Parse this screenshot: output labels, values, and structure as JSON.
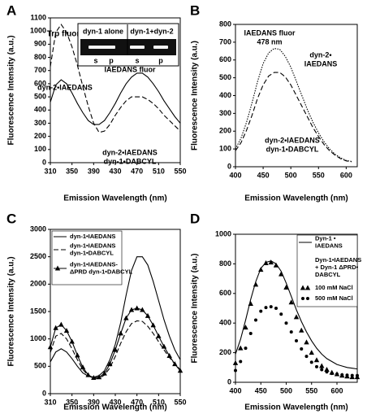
{
  "chart_data": [
    {
      "type": "line",
      "panel": "A",
      "xlabel": "Emission Wavelength (nm)",
      "ylabel": "Fluorescence Intensity (a.u.)",
      "xlim": [
        310,
        550
      ],
      "xticks": [
        310,
        350,
        390,
        430,
        470,
        510,
        550
      ],
      "ylim": [
        0,
        1100
      ],
      "yticks": [
        0,
        100,
        200,
        300,
        400,
        500,
        600,
        700,
        800,
        900,
        1000,
        1100
      ],
      "x": [
        310,
        320,
        330,
        340,
        350,
        360,
        370,
        380,
        390,
        400,
        410,
        420,
        430,
        440,
        450,
        460,
        470,
        480,
        490,
        500,
        510,
        520,
        530,
        540,
        550
      ],
      "series": [
        {
          "name": [
            "dyn-2•IAEDANS"
          ],
          "color": "#000000",
          "style": "solid",
          "values": [
            460,
            590,
            630,
            600,
            530,
            450,
            380,
            320,
            290,
            290,
            320,
            380,
            450,
            530,
            600,
            650,
            680,
            680,
            650,
            600,
            540,
            470,
            410,
            350,
            300
          ]
        },
        {
          "name": [
            "dyn-2•IAEDANS",
            "dyn-1•DABCYL"
          ],
          "color": "#000000",
          "style": "dashed",
          "values": [
            730,
            990,
            1050,
            990,
            880,
            740,
            580,
            430,
            300,
            230,
            240,
            290,
            360,
            420,
            470,
            500,
            500,
            500,
            480,
            450,
            410,
            360,
            320,
            280,
            240
          ]
        }
      ],
      "annotations": [
        "Trp fluor",
        "IAEDANS fluor"
      ],
      "inset": {
        "groups": [
          "dyn-1 alone",
          "dyn-1+dyn-2"
        ],
        "lanes": [
          "s",
          "p",
          "s",
          "p"
        ]
      }
    },
    {
      "type": "line",
      "panel": "B",
      "xlabel": "Emission Wavelength (nm)",
      "ylabel": "Fluorescence Intensity (a.u.)",
      "xlim": [
        400,
        620
      ],
      "xticks": [
        400,
        450,
        500,
        550,
        600
      ],
      "ylim": [
        0,
        800
      ],
      "yticks": [
        0,
        100,
        200,
        300,
        400,
        500,
        600,
        700,
        800
      ],
      "x": [
        400,
        410,
        420,
        430,
        440,
        450,
        460,
        470,
        480,
        490,
        500,
        510,
        520,
        530,
        540,
        550,
        560,
        570,
        580,
        590,
        600,
        610
      ],
      "series": [
        {
          "name": [
            "dyn-2•",
            "IAEDANS"
          ],
          "color": "#000000",
          "style": "dotted",
          "values": [
            100,
            160,
            250,
            360,
            480,
            580,
            640,
            665,
            660,
            620,
            560,
            480,
            400,
            320,
            250,
            190,
            140,
            100,
            70,
            50,
            35,
            30
          ]
        },
        {
          "name": [
            "dyn-2•IAEDANS",
            "dyn-1•DABCYL"
          ],
          "color": "#000000",
          "style": "dashed",
          "values": [
            90,
            135,
            205,
            290,
            385,
            460,
            510,
            530,
            530,
            505,
            460,
            400,
            340,
            280,
            220,
            170,
            125,
            90,
            65,
            45,
            33,
            28
          ]
        }
      ],
      "annotations": [
        "IAEDANS fluor",
        "478 nm"
      ]
    },
    {
      "type": "line",
      "panel": "C",
      "xlabel": "Emission Wavelength (nm)",
      "ylabel": "Fluorescence Intensity (a.u.)",
      "xlim": [
        310,
        550
      ],
      "xticks": [
        310,
        350,
        390,
        430,
        470,
        510,
        550
      ],
      "ylim": [
        0,
        3000
      ],
      "yticks": [
        0,
        500,
        1000,
        1500,
        2000,
        2500,
        3000
      ],
      "x": [
        310,
        320,
        330,
        340,
        350,
        360,
        370,
        380,
        390,
        400,
        410,
        420,
        430,
        440,
        450,
        460,
        470,
        480,
        490,
        500,
        510,
        520,
        530,
        540,
        550
      ],
      "series": [
        {
          "name": [
            "dyn-1•IAEDANS"
          ],
          "color": "#000000",
          "style": "solid",
          "values": [
            580,
            760,
            820,
            760,
            640,
            500,
            380,
            320,
            300,
            330,
            420,
            620,
            900,
            1300,
            1800,
            2250,
            2500,
            2500,
            2350,
            2050,
            1700,
            1350,
            1050,
            800,
            620
          ]
        },
        {
          "name": [
            "dyn-1•IAEDANS",
            "dyn-1•DABCYL"
          ],
          "color": "#000000",
          "style": "dashed",
          "values": [
            750,
            1050,
            1100,
            1000,
            820,
            620,
            440,
            330,
            280,
            280,
            340,
            470,
            680,
            920,
            1130,
            1280,
            1330,
            1320,
            1230,
            1100,
            950,
            800,
            660,
            540,
            440
          ]
        },
        {
          "name": [
            "dyn-1•IAEDANS-",
            "ΔPRD dyn-1•DABCYL"
          ],
          "color": "#000000",
          "style": "solid",
          "marker": "triangle",
          "values": [
            850,
            1200,
            1260,
            1150,
            950,
            700,
            480,
            340,
            290,
            300,
            370,
            540,
            800,
            1100,
            1380,
            1530,
            1560,
            1530,
            1420,
            1250,
            1050,
            860,
            690,
            540,
            420
          ]
        }
      ]
    },
    {
      "type": "line",
      "panel": "D",
      "xlabel": "Emission Wavelength (nm)",
      "ylabel": "Fluorescence Intensity (a.u.)",
      "xlim": [
        400,
        640
      ],
      "xticks": [
        400,
        450,
        500,
        550,
        600
      ],
      "ylim": [
        0,
        1000
      ],
      "yticks": [
        0,
        200,
        400,
        600,
        800,
        1000
      ],
      "x": [
        400,
        410,
        420,
        430,
        440,
        450,
        460,
        470,
        480,
        490,
        500,
        510,
        520,
        530,
        540,
        550,
        560,
        570,
        580,
        590,
        600,
        610,
        620,
        630,
        640
      ],
      "legend_title": [
        "Dyn-1•IAEDANS",
        "+ Dyn-1 ΔPRD•",
        "DABCYL"
      ],
      "series": [
        {
          "name": [
            "Dyn-1  •",
            "IAEDANS"
          ],
          "color": "#000000",
          "style": "solid",
          "values": [
            190,
            290,
            420,
            560,
            680,
            770,
            810,
            820,
            800,
            750,
            670,
            580,
            490,
            410,
            340,
            280,
            230,
            190,
            160,
            140,
            120,
            110,
            100,
            95,
            90
          ]
        },
        {
          "name": [
            "100 mM NaCl"
          ],
          "color": "#000000",
          "style": "none",
          "marker": "triangle",
          "values": [
            130,
            230,
            370,
            530,
            660,
            760,
            805,
            810,
            790,
            730,
            640,
            540,
            440,
            350,
            270,
            200,
            150,
            110,
            85,
            65,
            55,
            45,
            40,
            35,
            35
          ]
        },
        {
          "name": [
            "500 mM NaCl"
          ],
          "color": "#000000",
          "style": "none",
          "marker": "circle",
          "values": [
            80,
            140,
            230,
            330,
            420,
            480,
            505,
            510,
            500,
            460,
            400,
            340,
            280,
            225,
            175,
            135,
            105,
            85,
            70,
            60,
            55,
            50,
            48,
            46,
            45
          ]
        }
      ]
    }
  ]
}
